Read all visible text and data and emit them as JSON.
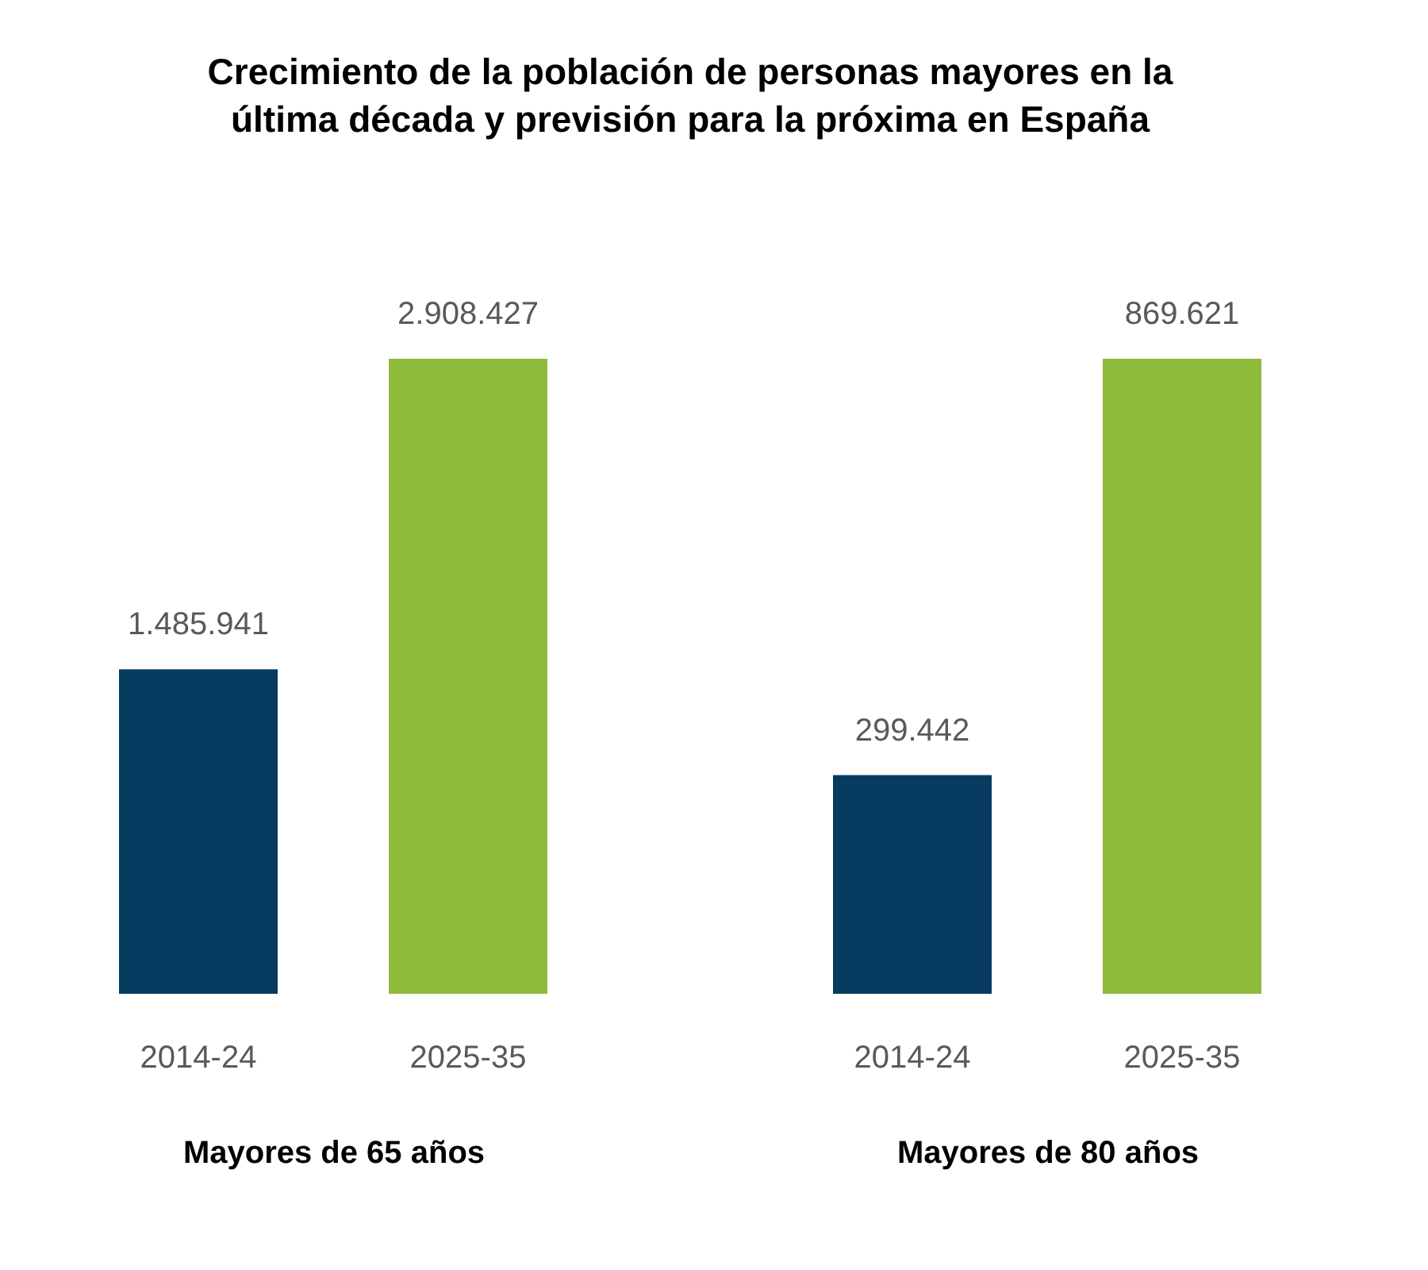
{
  "chart_data": [
    {
      "type": "bar",
      "title": "Crecimiento de la población de personas mayores en la\núltima década y previsión para la próxima en España",
      "xlabel": "Mayores de 65 años",
      "categories": [
        "2014-24",
        "2025-35"
      ],
      "values": [
        1485941,
        2908427
      ],
      "colors": [
        "#063a5e",
        "#8fbb3a"
      ],
      "value_labels": [
        "1.485.941",
        "2.908.427"
      ]
    },
    {
      "type": "bar",
      "xlabel": "Mayores de 80 años",
      "categories": [
        "2014-24",
        "2025-35"
      ],
      "values": [
        299442,
        869621
      ],
      "colors": [
        "#063a5e",
        "#8fbb3a"
      ],
      "value_labels": [
        "299.442",
        "869.621"
      ]
    }
  ]
}
